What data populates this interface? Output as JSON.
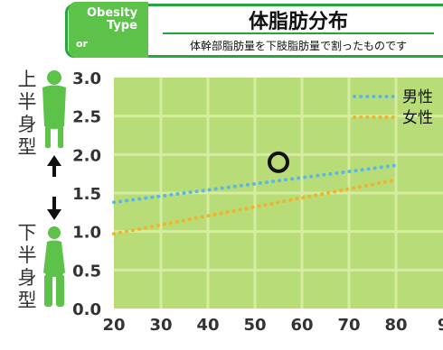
{
  "header": {
    "badge_line1": "Obesity",
    "badge_line2": "Type",
    "badge_line3": "or",
    "title": "体脂肪分布",
    "subtitle": "体幹部脂肪量を下肢脂肪量で割ったものです"
  },
  "side_labels": {
    "upper": [
      "上",
      "半",
      "身",
      "型"
    ],
    "lower": [
      "下",
      "半",
      "身",
      "型"
    ]
  },
  "colors": {
    "plot_bg": "#b8dc78",
    "grid": "#d6eda0",
    "male": "#5ab8e6",
    "female": "#f0b42a",
    "banner": "#22a83a",
    "figure": "#5cc24a"
  },
  "chart_data": {
    "type": "line",
    "xlim": [
      20,
      80
    ],
    "ylim": [
      0,
      3.0
    ],
    "x_ticks": [
      "20",
      "30",
      "40",
      "50",
      "60",
      "70",
      "80",
      "9"
    ],
    "y_ticks": [
      "0.0",
      "0.5",
      "1.0",
      "1.5",
      "2.0",
      "2.5",
      "3.0"
    ],
    "series": [
      {
        "name": "男性",
        "x": [
          20,
          80
        ],
        "y": [
          1.38,
          1.86
        ]
      },
      {
        "name": "女性",
        "x": [
          20,
          80
        ],
        "y": [
          0.97,
          1.67
        ]
      }
    ],
    "marker": {
      "x": 55,
      "y": 1.9
    },
    "legend_position": "top-right",
    "grid": true
  }
}
